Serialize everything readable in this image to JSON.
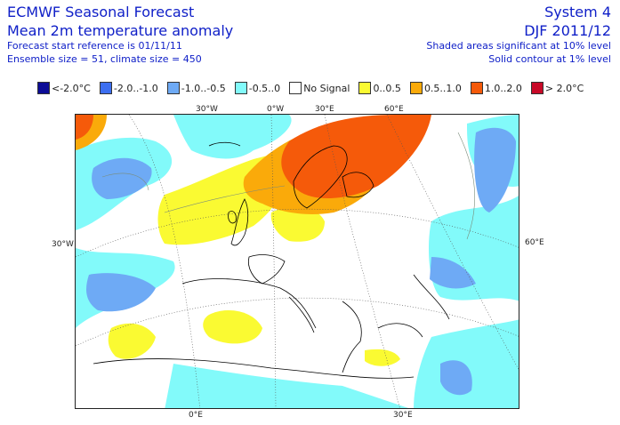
{
  "header": {
    "title_line1": "ECMWF Seasonal Forecast",
    "title_line2": "Mean 2m temperature anomaly",
    "forecast_ref": "Forecast start reference is 01/11/11",
    "ensemble": "Ensemble size = 51, climate size = 450",
    "system": "System 4",
    "period": "DJF 2011/12",
    "sig_note1": "Shaded areas significant at 10% level",
    "sig_note2": "Solid contour at 1% level"
  },
  "legend": [
    {
      "label": "<-2.0°C",
      "color": "#0c0c96"
    },
    {
      "label": "-2.0..-1.0",
      "color": "#3c6ef0"
    },
    {
      "label": "-1.0..-0.5",
      "color": "#6eaaf5"
    },
    {
      "label": "-0.5..0",
      "color": "#82fafa"
    },
    {
      "label": "No Signal",
      "color": "#ffffff"
    },
    {
      "label": "0..0.5",
      "color": "#fafa32"
    },
    {
      "label": "0.5..1.0",
      "color": "#faaa0a"
    },
    {
      "label": "1.0..2.0",
      "color": "#f55a0a"
    },
    {
      "label": "> 2.0°C",
      "color": "#c80a28"
    }
  ],
  "axes": {
    "top": [
      "30°W",
      "0°W",
      "30°E",
      "60°E"
    ],
    "left": "30°W",
    "right": "60°E",
    "bottom": [
      "0°E",
      "30°E"
    ]
  }
}
